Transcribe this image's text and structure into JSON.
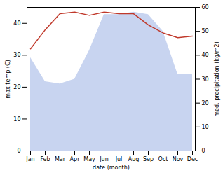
{
  "chart_data": {
    "type": "line",
    "categories": [
      "Jan",
      "Feb",
      "Mar",
      "Apr",
      "May",
      "Jun",
      "Jul",
      "Aug",
      "Sep",
      "Oct",
      "Nov",
      "Dec"
    ],
    "xlabel": "date (month)",
    "ylabel": "max temp (C)",
    "y2label": "med. precipitation (kg/m2)",
    "ylim": [
      0,
      45
    ],
    "yticks": [
      0,
      10,
      20,
      30,
      40
    ],
    "y2lim": [
      0,
      60
    ],
    "y2ticks": [
      0,
      10,
      20,
      30,
      40,
      50,
      60
    ],
    "grid": false,
    "series": [
      {
        "type": "area",
        "axis": "y2",
        "color": "#c8d4f0",
        "values": [
          39,
          29,
          28,
          30,
          42,
          57,
          57,
          58,
          57,
          50,
          32,
          32
        ]
      },
      {
        "type": "line",
        "color": "#c0392b",
        "values": [
          32,
          38,
          43,
          43.5,
          42.5,
          43.5,
          43.0,
          43.0,
          39.5,
          37.0,
          35.5,
          36.0
        ]
      }
    ]
  }
}
